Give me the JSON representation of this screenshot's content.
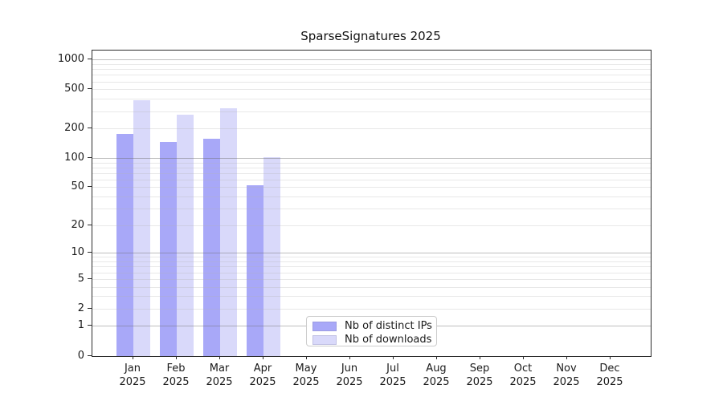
{
  "figure": {
    "background_color": "#ffffff",
    "spine_color": "#2b2b2b"
  },
  "chart_data": {
    "type": "bar",
    "title": "SparseSignatures 2025",
    "categories": [
      "Jan",
      "Feb",
      "Mar",
      "Apr",
      "May",
      "Jun",
      "Jul",
      "Aug",
      "Sep",
      "Oct",
      "Nov",
      "Dec"
    ],
    "x_year": "2025",
    "series": [
      {
        "name": "Nb of distinct IPs",
        "color": "#a8a8f8",
        "values": [
          178,
          147,
          158,
          53,
          0,
          0,
          0,
          0,
          0,
          0,
          0,
          0
        ]
      },
      {
        "name": "Nb of downloads",
        "color": "#d9d9fa",
        "values": [
          390,
          280,
          325,
          103,
          0,
          0,
          0,
          0,
          0,
          0,
          0,
          0
        ]
      }
    ],
    "yscale": "log10(1+v) symlog-like",
    "yticks": [
      0,
      1,
      2,
      5,
      10,
      20,
      50,
      100,
      200,
      500,
      1000
    ],
    "ytick_labels": [
      "0",
      "1",
      "2",
      "5",
      "10",
      "20",
      "50",
      "100",
      "200",
      "500",
      "1000"
    ],
    "major_decades": [
      1,
      10,
      100,
      1000
    ],
    "minor_gridlines": [
      2,
      3,
      4,
      5,
      6,
      7,
      8,
      9,
      20,
      30,
      40,
      50,
      60,
      70,
      80,
      90,
      200,
      300,
      400,
      500,
      600,
      700,
      800,
      900
    ],
    "ylim": [
      0,
      1250
    ],
    "grid": true,
    "legend_position": "inside lower-center-left",
    "xlabel": "",
    "ylabel": ""
  }
}
